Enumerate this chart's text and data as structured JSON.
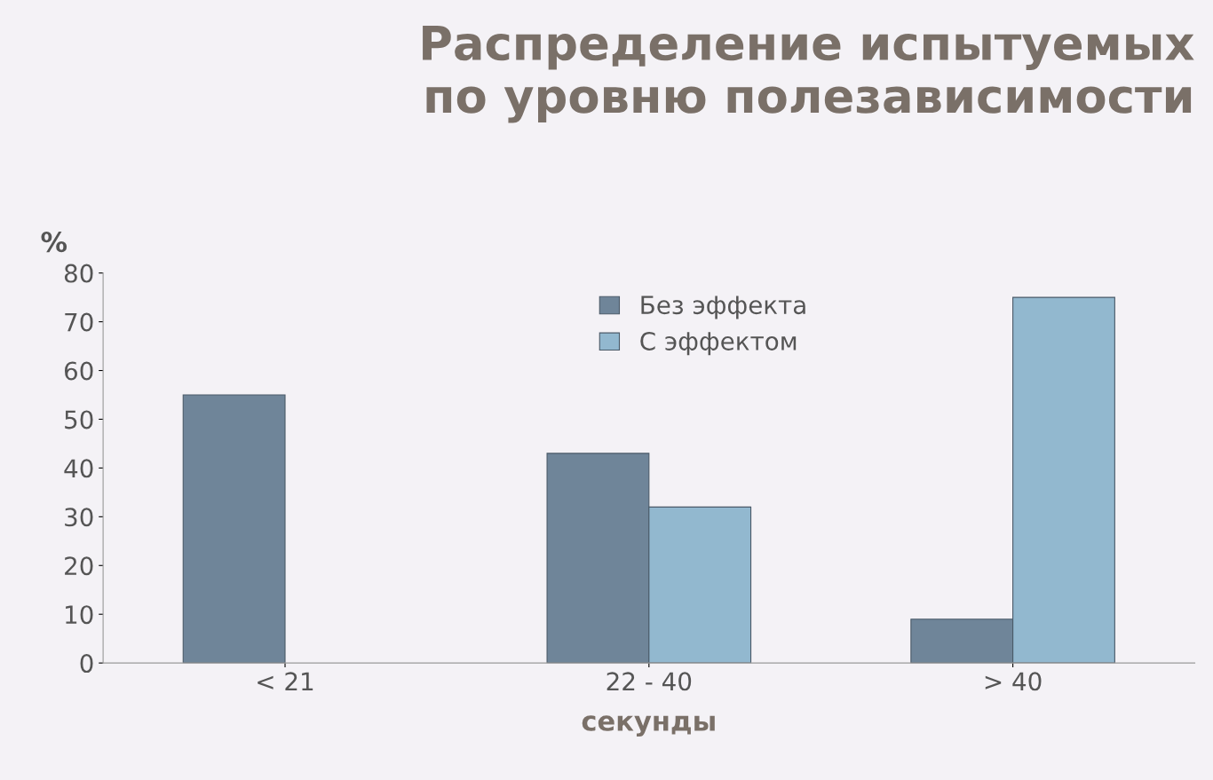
{
  "chart_data": {
    "type": "bar",
    "title": "Распределение испытуемых\nпо уровню полезависимости",
    "xlabel": "секунды",
    "ylabel": "%",
    "categories": [
      "< 21",
      "22 - 40",
      "> 40"
    ],
    "series": [
      {
        "name": "Без эффекта",
        "color": "#6f8599",
        "values": [
          55,
          43,
          9
        ]
      },
      {
        "name": "С эффектом",
        "color": "#92b8cf",
        "values": [
          null,
          32,
          75
        ]
      }
    ],
    "ylim": [
      0,
      80
    ],
    "yticks": [
      0,
      10,
      20,
      30,
      40,
      50,
      60,
      70,
      80
    ],
    "grid": false,
    "legend": "top"
  }
}
